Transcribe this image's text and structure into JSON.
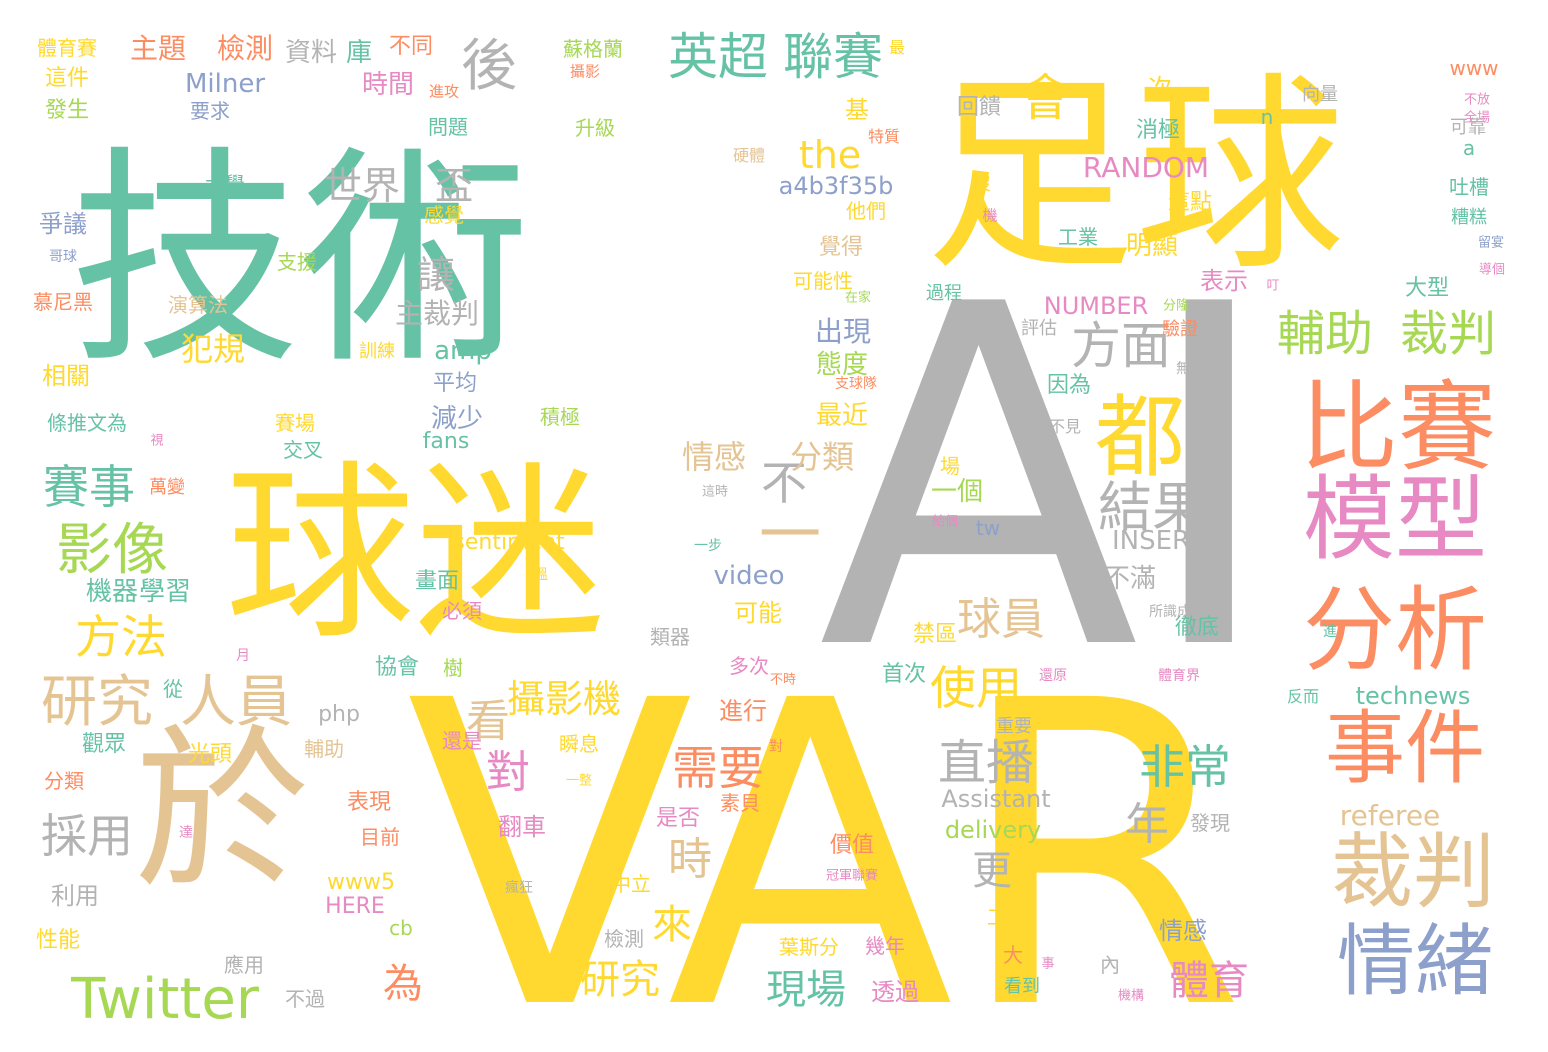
{
  "palette": {
    "teal": "#66c2a5",
    "yellow": "#ffd92f",
    "gray": "#b3b3b3",
    "orange": "#fc8d62",
    "blue": "#8da0cb",
    "pink": "#e78ac3",
    "green": "#a6d854",
    "tan": "#e5c494"
  },
  "words": [
    {
      "text": "技術",
      "color": "teal"
    },
    {
      "text": "足球",
      "color": "yellow"
    },
    {
      "text": "AI",
      "color": "gray"
    },
    {
      "text": "VAR",
      "color": "yellow"
    },
    {
      "text": "球迷",
      "color": "yellow"
    },
    {
      "text": "於",
      "color": "tan"
    },
    {
      "text": "比賽",
      "color": "orange"
    },
    {
      "text": "模型",
      "color": "pink"
    },
    {
      "text": "分析",
      "color": "orange"
    },
    {
      "text": "事件",
      "color": "orange"
    },
    {
      "text": "裁判",
      "color": "tan"
    },
    {
      "text": "情緒",
      "color": "blue"
    },
    {
      "text": "都",
      "color": "yellow"
    },
    {
      "text": "一",
      "color": "tan"
    },
    {
      "text": "Twitter",
      "color": "green"
    },
    {
      "text": "影像",
      "color": "green"
    },
    {
      "text": "研究",
      "color": "tan"
    },
    {
      "text": "人員",
      "color": "tan"
    },
    {
      "text": "英超",
      "color": "teal"
    },
    {
      "text": "聯賽",
      "color": "teal"
    },
    {
      "text": "輔助",
      "color": "green"
    },
    {
      "text": "裁判",
      "color": "green"
    },
    {
      "text": "結果",
      "color": "gray"
    },
    {
      "text": "方面",
      "color": "gray"
    },
    {
      "text": "會",
      "color": "yellow"
    },
    {
      "text": "後",
      "color": "gray"
    },
    {
      "text": "不",
      "color": "gray"
    },
    {
      "text": "賽事",
      "color": "teal"
    },
    {
      "text": "方法",
      "color": "yellow"
    },
    {
      "text": "採用",
      "color": "gray"
    },
    {
      "text": "直播",
      "color": "gray"
    },
    {
      "text": "非常",
      "color": "teal"
    },
    {
      "text": "使用",
      "color": "yellow"
    },
    {
      "text": "需要",
      "color": "orange"
    },
    {
      "text": "球員",
      "color": "tan"
    },
    {
      "text": "看",
      "color": "tan"
    },
    {
      "text": "攝影機",
      "color": "yellow"
    },
    {
      "text": "對",
      "color": "pink"
    },
    {
      "text": "時",
      "color": "tan"
    },
    {
      "text": "來",
      "color": "yellow"
    },
    {
      "text": "為",
      "color": "orange"
    },
    {
      "text": "研究",
      "color": "yellow"
    },
    {
      "text": "現場",
      "color": "teal"
    },
    {
      "text": "體育",
      "color": "pink"
    },
    {
      "text": "年",
      "color": "gray"
    },
    {
      "text": "更",
      "color": "gray"
    },
    {
      "text": "世界",
      "color": "gray"
    },
    {
      "text": "盃",
      "color": "gray"
    },
    {
      "text": "讓",
      "color": "gray"
    },
    {
      "text": "the",
      "color": "yellow"
    },
    {
      "text": "情感",
      "color": "tan"
    },
    {
      "text": "分類",
      "color": "tan"
    },
    {
      "text": "出現",
      "color": "blue"
    },
    {
      "text": "態度",
      "color": "green"
    },
    {
      "text": "最近",
      "color": "yellow"
    },
    {
      "text": "減少",
      "color": "blue"
    },
    {
      "text": "amp",
      "color": "teal"
    },
    {
      "text": "平均",
      "color": "blue"
    },
    {
      "text": "犯規",
      "color": "yellow"
    },
    {
      "text": "主裁判",
      "color": "gray"
    },
    {
      "text": "RANDOM",
      "color": "pink"
    },
    {
      "text": "NUMBER",
      "color": "pink"
    },
    {
      "text": "a4b3f35b",
      "color": "blue"
    },
    {
      "text": "INSERT",
      "color": "gray"
    },
    {
      "text": "sentiment",
      "color": "yellow"
    },
    {
      "text": "video",
      "color": "blue"
    },
    {
      "text": "referee",
      "color": "tan"
    },
    {
      "text": "Assistant",
      "color": "gray"
    },
    {
      "text": "delivery",
      "color": "green"
    },
    {
      "text": "technews",
      "color": "teal"
    },
    {
      "text": "fans",
      "color": "teal"
    },
    {
      "text": "php",
      "color": "gray"
    },
    {
      "text": "www5",
      "color": "yellow"
    },
    {
      "text": "HERE",
      "color": "pink"
    },
    {
      "text": "tw",
      "color": "blue"
    },
    {
      "text": "cb",
      "color": "green"
    },
    {
      "text": "www",
      "color": "orange"
    },
    {
      "text": "n",
      "color": "teal"
    },
    {
      "text": "a",
      "color": "teal"
    },
    {
      "text": "Milner",
      "color": "blue"
    },
    {
      "text": "主題",
      "color": "orange"
    },
    {
      "text": "檢測",
      "color": "orange"
    },
    {
      "text": "資料",
      "color": "gray"
    },
    {
      "text": "庫",
      "color": "teal"
    },
    {
      "text": "不同",
      "color": "orange"
    },
    {
      "text": "蘇格蘭",
      "color": "green"
    },
    {
      "text": "最",
      "color": "yellow"
    },
    {
      "text": "體育賽",
      "color": "yellow"
    },
    {
      "text": "這件",
      "color": "yellow"
    },
    {
      "text": "發生",
      "color": "green"
    },
    {
      "text": "要求",
      "color": "blue"
    },
    {
      "text": "時間",
      "color": "pink"
    },
    {
      "text": "進攻",
      "color": "orange"
    },
    {
      "text": "攝影",
      "color": "orange"
    },
    {
      "text": "問題",
      "color": "teal"
    },
    {
      "text": "升級",
      "color": "green"
    },
    {
      "text": "基",
      "color": "yellow"
    },
    {
      "text": "次",
      "color": "yellow"
    },
    {
      "text": "回饋",
      "color": "gray"
    },
    {
      "text": "向量",
      "color": "gray"
    },
    {
      "text": "不放",
      "color": "pink"
    },
    {
      "text": "全場",
      "color": "pink"
    },
    {
      "text": "可靠",
      "color": "gray"
    },
    {
      "text": "消極",
      "color": "teal"
    },
    {
      "text": "特質",
      "color": "orange"
    },
    {
      "text": "硬體",
      "color": "tan"
    },
    {
      "text": "大學",
      "color": "teal"
    },
    {
      "text": "感覺",
      "color": "yellow"
    },
    {
      "text": "他們",
      "color": "yellow"
    },
    {
      "text": "沒",
      "color": "yellow"
    },
    {
      "text": "機",
      "color": "pink"
    },
    {
      "text": "這點",
      "color": "yellow"
    },
    {
      "text": "吐槽",
      "color": "teal"
    },
    {
      "text": "糟糕",
      "color": "teal"
    },
    {
      "text": "留宴",
      "color": "blue"
    },
    {
      "text": "爭議",
      "color": "blue"
    },
    {
      "text": "支援",
      "color": "green"
    },
    {
      "text": "覺得",
      "color": "tan"
    },
    {
      "text": "工業",
      "color": "teal"
    },
    {
      "text": "明顯",
      "color": "yellow"
    },
    {
      "text": "導個",
      "color": "pink"
    },
    {
      "text": "哥球",
      "color": "blue"
    },
    {
      "text": "演算法",
      "color": "tan"
    },
    {
      "text": "可能性",
      "color": "yellow"
    },
    {
      "text": "在家",
      "color": "green"
    },
    {
      "text": "表示",
      "color": "pink"
    },
    {
      "text": "大型",
      "color": "teal"
    },
    {
      "text": "叮",
      "color": "pink"
    },
    {
      "text": "慕尼黑",
      "color": "orange"
    },
    {
      "text": "過程",
      "color": "teal"
    },
    {
      "text": "分隆",
      "color": "green"
    },
    {
      "text": "評估",
      "color": "gray"
    },
    {
      "text": "驗證",
      "color": "orange"
    },
    {
      "text": "相關",
      "color": "yellow"
    },
    {
      "text": "訓練",
      "color": "yellow"
    },
    {
      "text": "無論",
      "color": "gray"
    },
    {
      "text": "支球隊",
      "color": "orange"
    },
    {
      "text": "因為",
      "color": "teal"
    },
    {
      "text": "賽場",
      "color": "yellow"
    },
    {
      "text": "積極",
      "color": "green"
    },
    {
      "text": "條推文為",
      "color": "teal"
    },
    {
      "text": "視",
      "color": "pink"
    },
    {
      "text": "交叉",
      "color": "teal"
    },
    {
      "text": "不見",
      "color": "gray"
    },
    {
      "text": "萬變",
      "color": "orange"
    },
    {
      "text": "場",
      "color": "yellow"
    },
    {
      "text": "一個",
      "color": "green"
    },
    {
      "text": "這時",
      "color": "gray"
    },
    {
      "text": "給個",
      "color": "pink"
    },
    {
      "text": "不滿",
      "color": "gray"
    },
    {
      "text": "一步",
      "color": "teal"
    },
    {
      "text": "機器",
      "color": "teal"
    },
    {
      "text": "學習",
      "color": "teal"
    },
    {
      "text": "畫面",
      "color": "teal"
    },
    {
      "text": "溫",
      "color": "yellow"
    },
    {
      "text": "徹底",
      "color": "teal"
    },
    {
      "text": "所識成",
      "color": "gray"
    },
    {
      "text": "必須",
      "color": "pink"
    },
    {
      "text": "可能",
      "color": "yellow"
    },
    {
      "text": "禁區",
      "color": "yellow"
    },
    {
      "text": "進",
      "color": "teal"
    },
    {
      "text": "類器",
      "color": "gray"
    },
    {
      "text": "月",
      "color": "pink"
    },
    {
      "text": "協會",
      "color": "teal"
    },
    {
      "text": "樹",
      "color": "green"
    },
    {
      "text": "首次",
      "color": "teal"
    },
    {
      "text": "還原",
      "color": "pink"
    },
    {
      "text": "體育界",
      "color": "pink"
    },
    {
      "text": "反而",
      "color": "teal"
    },
    {
      "text": "從",
      "color": "teal"
    },
    {
      "text": "多次",
      "color": "pink"
    },
    {
      "text": "不時",
      "color": "orange"
    },
    {
      "text": "進行",
      "color": "orange"
    },
    {
      "text": "重要",
      "color": "gray"
    },
    {
      "text": "觀眾",
      "color": "teal"
    },
    {
      "text": "光頭",
      "color": "yellow"
    },
    {
      "text": "輔助",
      "color": "tan"
    },
    {
      "text": "還是",
      "color": "pink"
    },
    {
      "text": "瞬息",
      "color": "yellow"
    },
    {
      "text": "對",
      "color": "orange"
    },
    {
      "text": "分類",
      "color": "orange"
    },
    {
      "text": "一整",
      "color": "yellow"
    },
    {
      "text": "表現",
      "color": "orange"
    },
    {
      "text": "翻車",
      "color": "pink"
    },
    {
      "text": "是否",
      "color": "pink"
    },
    {
      "text": "素貝",
      "color": "orange"
    },
    {
      "text": "發現",
      "color": "gray"
    },
    {
      "text": "目前",
      "color": "orange"
    },
    {
      "text": "達",
      "color": "pink"
    },
    {
      "text": "價值",
      "color": "orange"
    },
    {
      "text": "冠軍聯賽",
      "color": "pink"
    },
    {
      "text": "瘋狂",
      "color": "gray"
    },
    {
      "text": "中立",
      "color": "yellow"
    },
    {
      "text": "利用",
      "color": "gray"
    },
    {
      "text": "性能",
      "color": "yellow"
    },
    {
      "text": "工具",
      "color": "yellow"
    },
    {
      "text": "情感",
      "color": "blue"
    },
    {
      "text": "檢測",
      "color": "gray"
    },
    {
      "text": "葉斯分",
      "color": "yellow"
    },
    {
      "text": "幾年",
      "color": "pink"
    },
    {
      "text": "大",
      "color": "orange"
    },
    {
      "text": "事",
      "color": "pink"
    },
    {
      "text": "內",
      "color": "gray"
    },
    {
      "text": "應用",
      "color": "gray"
    },
    {
      "text": "不過",
      "color": "gray"
    },
    {
      "text": "透過",
      "color": "pink"
    },
    {
      "text": "看到",
      "color": "teal"
    },
    {
      "text": "機構",
      "color": "pink"
    }
  ]
}
